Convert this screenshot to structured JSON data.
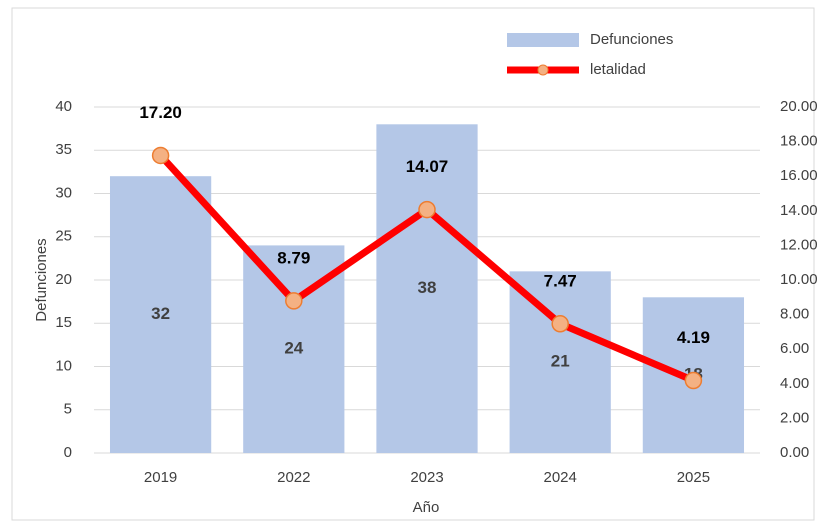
{
  "chart_data": {
    "type": "bar_line",
    "x_label": "Año",
    "y_label": "Defunciones",
    "categories": [
      "2019",
      "2022",
      "2023",
      "2024",
      "2025"
    ],
    "series": [
      {
        "name": "Defunciones",
        "type": "bar",
        "color": "#b4c7e7",
        "values": [
          32,
          24,
          38,
          21,
          18
        ]
      },
      {
        "name": "letalidad",
        "type": "line",
        "axis": "y2",
        "color": "#ff0000",
        "marker_color": "#f4b183",
        "values": [
          17.2,
          8.79,
          14.07,
          7.47,
          4.19
        ],
        "value_labels": [
          "17.20",
          "8.79",
          "14.07",
          "7.47",
          "4.19"
        ]
      }
    ],
    "ylim": [
      0,
      40
    ],
    "yticks": [
      0,
      5,
      10,
      15,
      20,
      25,
      30,
      35,
      40
    ],
    "y2lim": [
      0,
      20
    ],
    "y2ticks": [
      {
        "value": 0,
        "label": "0.00"
      },
      {
        "value": 2,
        "label": "2.00"
      },
      {
        "value": 4,
        "label": "4.00"
      },
      {
        "value": 6,
        "label": "6.00"
      },
      {
        "value": 8,
        "label": "8.00"
      },
      {
        "value": 10,
        "label": "10.00"
      },
      {
        "value": 12,
        "label": "12.00"
      },
      {
        "value": 14,
        "label": "14.00"
      },
      {
        "value": 16,
        "label": "16.00"
      },
      {
        "value": 18,
        "label": "18.00"
      },
      {
        "value": 20,
        "label": "20.00"
      }
    ],
    "grid": true,
    "legend": "top-right"
  }
}
